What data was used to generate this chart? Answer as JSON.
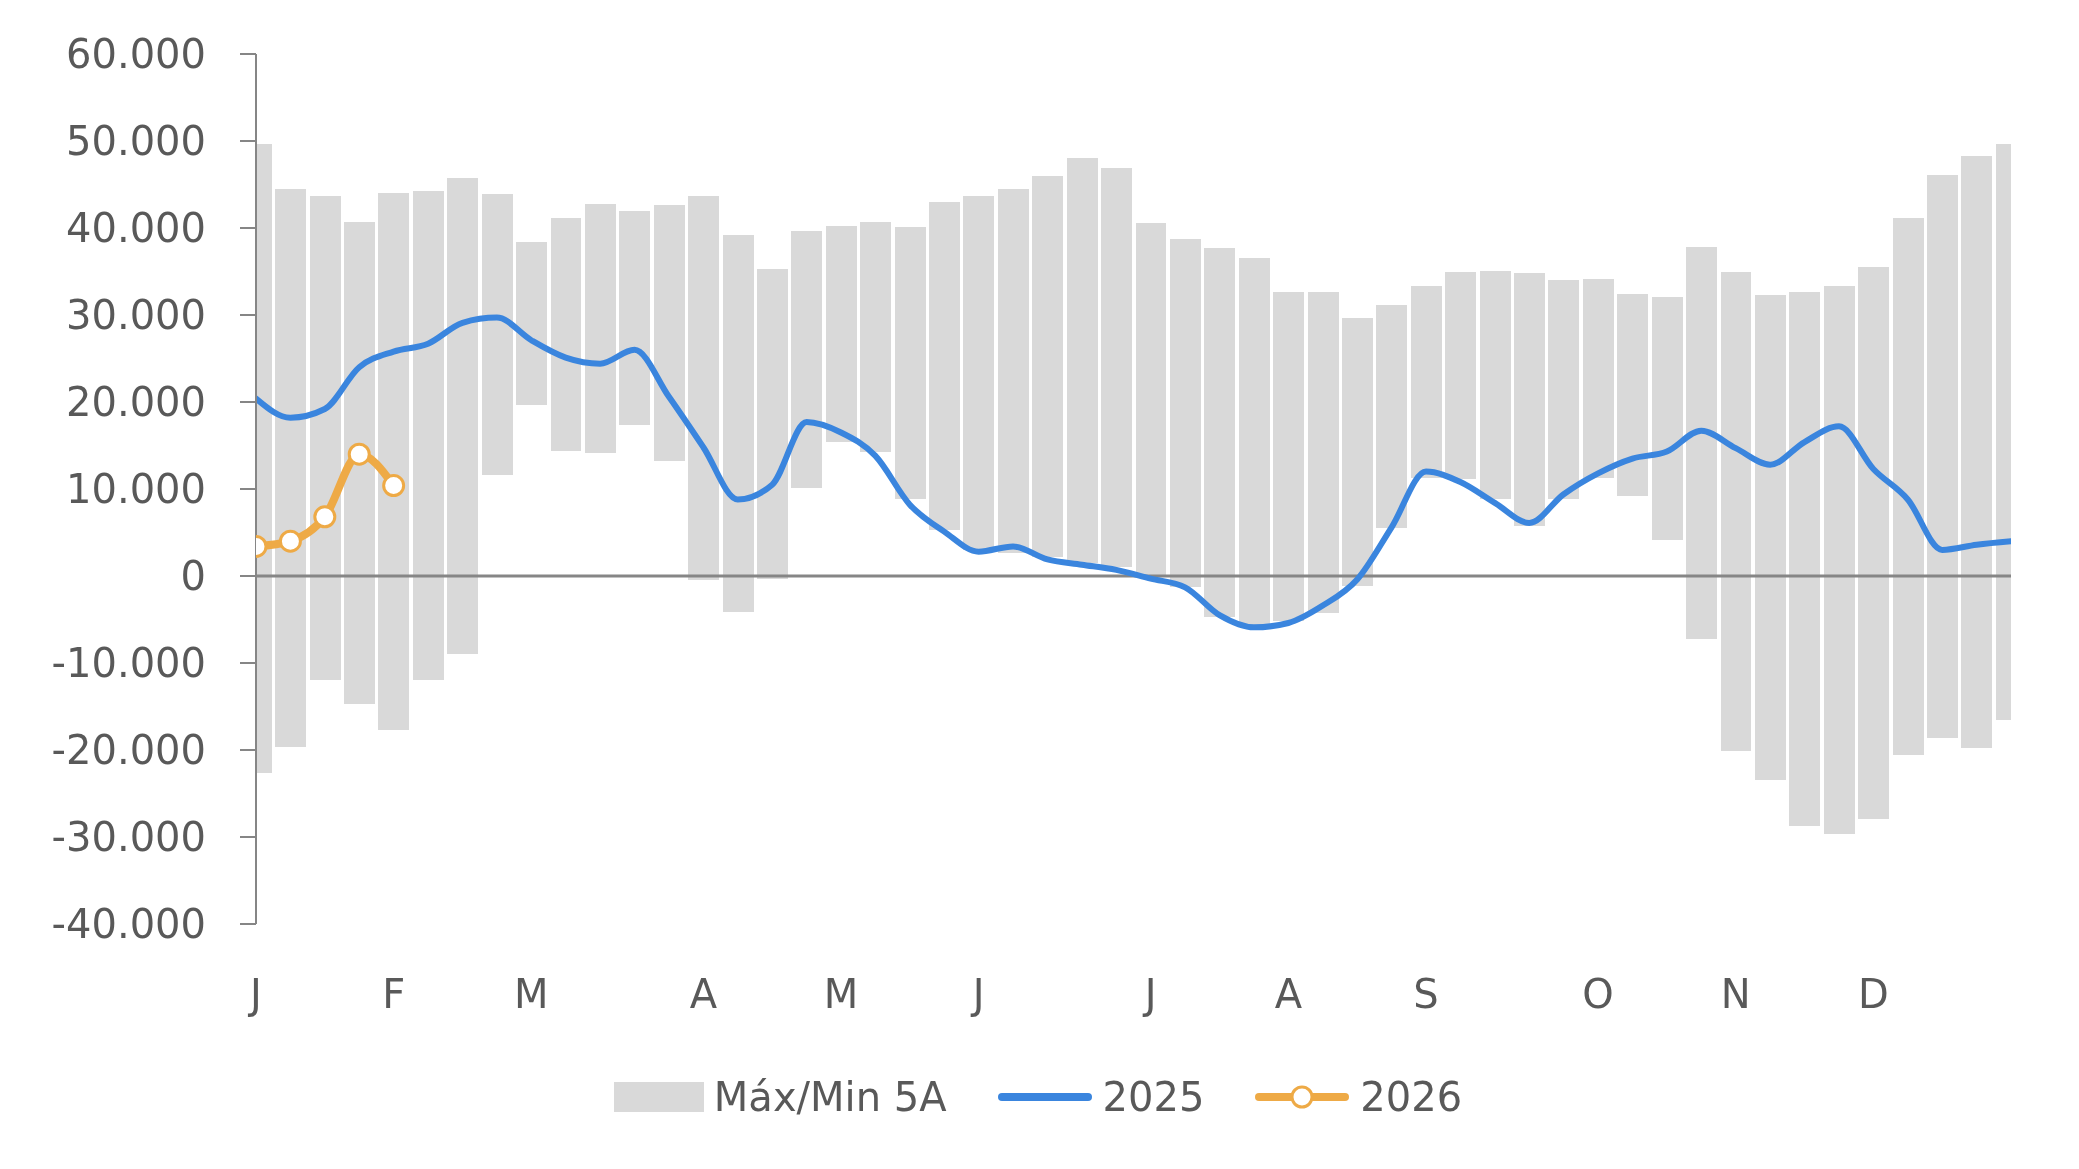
{
  "chart_data": {
    "type": "line",
    "categories": [
      "J",
      null,
      null,
      null,
      "F",
      null,
      null,
      null,
      "M",
      null,
      null,
      null,
      null,
      "A",
      null,
      null,
      null,
      "M",
      null,
      null,
      null,
      "J",
      null,
      null,
      null,
      null,
      "J",
      null,
      null,
      null,
      "A",
      null,
      null,
      null,
      "S",
      null,
      null,
      null,
      null,
      "O",
      null,
      null,
      null,
      "N",
      null,
      null,
      null,
      "D",
      null,
      null,
      null,
      null
    ],
    "series": [
      {
        "name": "Máx/Min 5A",
        "type": "bar",
        "color": "#d9d9d9",
        "base": [
          -22700,
          -19600,
          -11900,
          -14700,
          -17700,
          -11900,
          -9000,
          11600,
          19600,
          14400,
          14100,
          17400,
          13200,
          -500,
          -4100,
          -300,
          10100,
          15400,
          14200,
          8800,
          5300,
          3000,
          2600,
          2200,
          1500,
          1000,
          0,
          -1300,
          -4700,
          -5600,
          -5200,
          -4300,
          -1200,
          5500,
          11300,
          11100,
          8800,
          5700,
          8800,
          11300,
          9200,
          4100,
          -7200,
          -20100,
          -23500,
          -28700,
          -29600,
          -27900,
          -20600,
          -18600,
          -19800,
          -16600
        ],
        "values": [
          72400,
          64100,
          55600,
          55400,
          61700,
          56200,
          54800,
          32300,
          18800,
          26700,
          28700,
          24600,
          29400,
          44200,
          43300,
          35600,
          29600,
          24800,
          26500,
          31300,
          37700,
          40700,
          41900,
          43800,
          46500,
          45900,
          40600,
          40000,
          42400,
          42200,
          37900,
          37000,
          30800,
          25700,
          22000,
          23900,
          26300,
          29100,
          25200,
          22800,
          23200,
          28000,
          45000,
          55000,
          55800,
          61300,
          62900,
          63400,
          61800,
          64700,
          68100,
          66300
        ]
      },
      {
        "name": "2025",
        "color": "#3a85de",
        "values": [
          20400,
          18200,
          19200,
          24000,
          25800,
          26700,
          29100,
          29700,
          27100,
          25100,
          24400,
          26000,
          20600,
          14800,
          8800,
          10500,
          17700,
          16500,
          13800,
          8200,
          5100,
          2800,
          3400,
          1900,
          1300,
          700,
          -300,
          -1300,
          -4500,
          -5900,
          -5400,
          -3400,
          -400,
          5600,
          12000,
          10800,
          8400,
          6100,
          9400,
          11800,
          13500,
          14300,
          16700,
          14700,
          12800,
          15400,
          17200,
          12300,
          8800,
          3000,
          3600,
          4000
        ]
      },
      {
        "name": "2026",
        "color": "#eeaa46",
        "marker": "circle",
        "values": [
          3400,
          4000,
          6800,
          14000,
          10400,
          null,
          null,
          null,
          null,
          null,
          null,
          null,
          null,
          null,
          null,
          null,
          null,
          null,
          null,
          null,
          null,
          null,
          null,
          null,
          null,
          null,
          null,
          null,
          null,
          null,
          null,
          null,
          null,
          null,
          null,
          null,
          null,
          null,
          null,
          null,
          null,
          null,
          null,
          null,
          null,
          null,
          null,
          null,
          null,
          null,
          null,
          null
        ]
      }
    ],
    "ylim": [
      -40000,
      60000
    ],
    "yticks": [
      {
        "value": -40000,
        "label": "-40.000"
      },
      {
        "value": -30000,
        "label": "-30.000"
      },
      {
        "value": -20000,
        "label": "-20.000"
      },
      {
        "value": -10000,
        "label": "-10.000"
      },
      0,
      {
        "value": 10000,
        "label": "10.000"
      },
      {
        "value": 20000,
        "label": "20.000"
      },
      {
        "value": 30000,
        "label": "30.000"
      },
      {
        "value": 40000,
        "label": "40.000"
      },
      {
        "value": 50000,
        "label": "50.000"
      },
      {
        "value": 60000,
        "label": "60.000"
      }
    ],
    "ref_lines": [
      {
        "axis": "y",
        "value": 0,
        "color": "#868686"
      }
    ],
    "legend": "bottom"
  }
}
